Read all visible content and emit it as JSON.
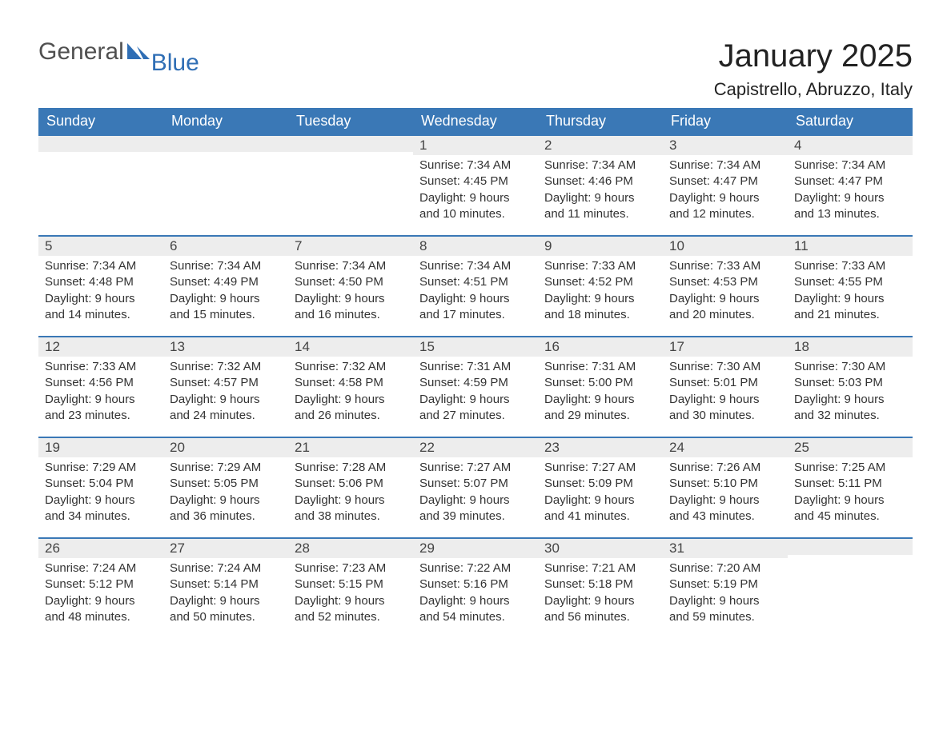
{
  "brand": {
    "part1": "General",
    "part2": "Blue",
    "logo_color": "#2f6eb5"
  },
  "title": "January 2025",
  "location": "Capistrello, Abruzzo, Italy",
  "colors": {
    "header_bg": "#3a78b6",
    "header_text": "#ffffff",
    "daynum_bg": "#ededed",
    "daynum_border": "#3a78b6",
    "body_text": "#333333"
  },
  "fonts": {
    "title_size_pt": 30,
    "location_size_pt": 17,
    "header_size_pt": 14,
    "body_size_pt": 11
  },
  "weekdays": [
    "Sunday",
    "Monday",
    "Tuesday",
    "Wednesday",
    "Thursday",
    "Friday",
    "Saturday"
  ],
  "weeks": [
    [
      null,
      null,
      null,
      {
        "n": 1,
        "sr": "7:34 AM",
        "ss": "4:45 PM",
        "dl": "9 hours and 10 minutes."
      },
      {
        "n": 2,
        "sr": "7:34 AM",
        "ss": "4:46 PM",
        "dl": "9 hours and 11 minutes."
      },
      {
        "n": 3,
        "sr": "7:34 AM",
        "ss": "4:47 PM",
        "dl": "9 hours and 12 minutes."
      },
      {
        "n": 4,
        "sr": "7:34 AM",
        "ss": "4:47 PM",
        "dl": "9 hours and 13 minutes."
      }
    ],
    [
      {
        "n": 5,
        "sr": "7:34 AM",
        "ss": "4:48 PM",
        "dl": "9 hours and 14 minutes."
      },
      {
        "n": 6,
        "sr": "7:34 AM",
        "ss": "4:49 PM",
        "dl": "9 hours and 15 minutes."
      },
      {
        "n": 7,
        "sr": "7:34 AM",
        "ss": "4:50 PM",
        "dl": "9 hours and 16 minutes."
      },
      {
        "n": 8,
        "sr": "7:34 AM",
        "ss": "4:51 PM",
        "dl": "9 hours and 17 minutes."
      },
      {
        "n": 9,
        "sr": "7:33 AM",
        "ss": "4:52 PM",
        "dl": "9 hours and 18 minutes."
      },
      {
        "n": 10,
        "sr": "7:33 AM",
        "ss": "4:53 PM",
        "dl": "9 hours and 20 minutes."
      },
      {
        "n": 11,
        "sr": "7:33 AM",
        "ss": "4:55 PM",
        "dl": "9 hours and 21 minutes."
      }
    ],
    [
      {
        "n": 12,
        "sr": "7:33 AM",
        "ss": "4:56 PM",
        "dl": "9 hours and 23 minutes."
      },
      {
        "n": 13,
        "sr": "7:32 AM",
        "ss": "4:57 PM",
        "dl": "9 hours and 24 minutes."
      },
      {
        "n": 14,
        "sr": "7:32 AM",
        "ss": "4:58 PM",
        "dl": "9 hours and 26 minutes."
      },
      {
        "n": 15,
        "sr": "7:31 AM",
        "ss": "4:59 PM",
        "dl": "9 hours and 27 minutes."
      },
      {
        "n": 16,
        "sr": "7:31 AM",
        "ss": "5:00 PM",
        "dl": "9 hours and 29 minutes."
      },
      {
        "n": 17,
        "sr": "7:30 AM",
        "ss": "5:01 PM",
        "dl": "9 hours and 30 minutes."
      },
      {
        "n": 18,
        "sr": "7:30 AM",
        "ss": "5:03 PM",
        "dl": "9 hours and 32 minutes."
      }
    ],
    [
      {
        "n": 19,
        "sr": "7:29 AM",
        "ss": "5:04 PM",
        "dl": "9 hours and 34 minutes."
      },
      {
        "n": 20,
        "sr": "7:29 AM",
        "ss": "5:05 PM",
        "dl": "9 hours and 36 minutes."
      },
      {
        "n": 21,
        "sr": "7:28 AM",
        "ss": "5:06 PM",
        "dl": "9 hours and 38 minutes."
      },
      {
        "n": 22,
        "sr": "7:27 AM",
        "ss": "5:07 PM",
        "dl": "9 hours and 39 minutes."
      },
      {
        "n": 23,
        "sr": "7:27 AM",
        "ss": "5:09 PM",
        "dl": "9 hours and 41 minutes."
      },
      {
        "n": 24,
        "sr": "7:26 AM",
        "ss": "5:10 PM",
        "dl": "9 hours and 43 minutes."
      },
      {
        "n": 25,
        "sr": "7:25 AM",
        "ss": "5:11 PM",
        "dl": "9 hours and 45 minutes."
      }
    ],
    [
      {
        "n": 26,
        "sr": "7:24 AM",
        "ss": "5:12 PM",
        "dl": "9 hours and 48 minutes."
      },
      {
        "n": 27,
        "sr": "7:24 AM",
        "ss": "5:14 PM",
        "dl": "9 hours and 50 minutes."
      },
      {
        "n": 28,
        "sr": "7:23 AM",
        "ss": "5:15 PM",
        "dl": "9 hours and 52 minutes."
      },
      {
        "n": 29,
        "sr": "7:22 AM",
        "ss": "5:16 PM",
        "dl": "9 hours and 54 minutes."
      },
      {
        "n": 30,
        "sr": "7:21 AM",
        "ss": "5:18 PM",
        "dl": "9 hours and 56 minutes."
      },
      {
        "n": 31,
        "sr": "7:20 AM",
        "ss": "5:19 PM",
        "dl": "9 hours and 59 minutes."
      },
      null
    ]
  ],
  "labels": {
    "sunrise": "Sunrise: ",
    "sunset": "Sunset: ",
    "daylight": "Daylight: "
  }
}
